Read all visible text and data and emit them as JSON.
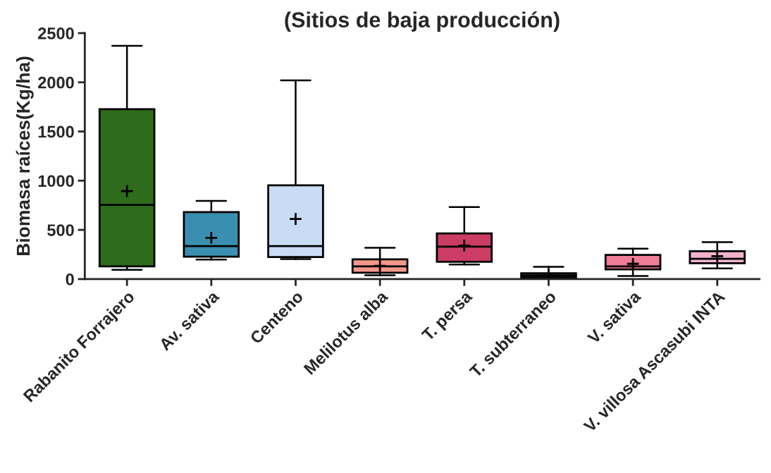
{
  "chart_data": {
    "type": "box",
    "title": "(Sitios de baja producción)",
    "ylabel": "Biomasa raíces(Kg/ha)",
    "categories": [
      "Rabanito Forrajero",
      "Av. sativa",
      "Centeno",
      "Melilotus alba",
      "T. persa",
      "T. subterraneo",
      "V. sativa",
      "V. villosa Ascasubi INTA"
    ],
    "colors": [
      "#2e6b1a",
      "#3a8fb0",
      "#c8dcf5",
      "#f4998a",
      "#cc3d66",
      "#2a2a2a",
      "#f07c98",
      "#f2b3cc"
    ],
    "boxes": [
      {
        "low": 95,
        "q1": 129,
        "median": 755,
        "q3": 1727,
        "high": 2371,
        "mean": 894
      },
      {
        "low": 198,
        "q1": 227,
        "median": 335,
        "q3": 680,
        "high": 794,
        "mean": 420
      },
      {
        "low": 204,
        "q1": 224,
        "median": 335,
        "q3": 953,
        "high": 2020,
        "mean": 611
      },
      {
        "low": 39,
        "q1": 64,
        "median": 129,
        "q3": 201,
        "high": 318,
        "mean": 134
      },
      {
        "low": 147,
        "q1": 175,
        "median": 330,
        "q3": 464,
        "high": 732,
        "mean": 340
      },
      {
        "low": 5,
        "q1": 13,
        "median": 34,
        "q3": 59,
        "high": 124,
        "mean": 34
      },
      {
        "low": 31,
        "q1": 98,
        "median": 129,
        "q3": 245,
        "high": 309,
        "mean": 155
      },
      {
        "low": 108,
        "q1": 162,
        "median": 206,
        "q3": 283,
        "high": 376,
        "mean": 232
      }
    ],
    "ylim": [
      0,
      2500
    ],
    "yticks": [
      0,
      500,
      1000,
      1500,
      2000,
      2500
    ],
    "grid": false,
    "legend": false
  }
}
